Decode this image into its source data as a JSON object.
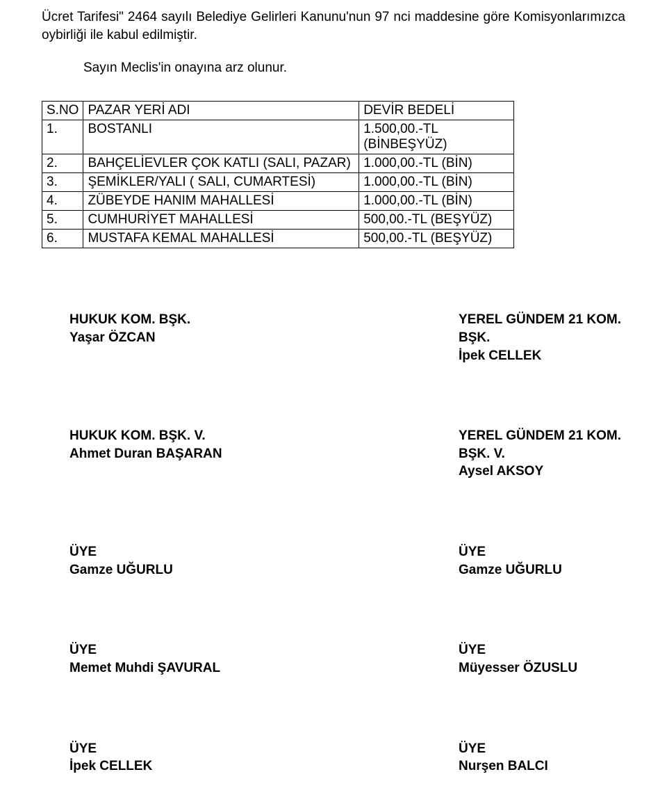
{
  "intro_text": "Ücret Tarifesi\" 2464 sayılı Belediye Gelirleri Kanunu'nun 97 nci maddesine göre Komisyonlarımızca oybirliği ile kabul edilmiştir.",
  "submit_text": "Sayın Meclis'in onayına arz olunur.",
  "table": {
    "header": {
      "idx": "S.NO",
      "name": "PAZAR YERİ ADI",
      "fee": "DEVİR BEDELİ"
    },
    "rows": [
      {
        "idx": "1.",
        "name": "BOSTANLI",
        "fee": "1.500,00.-TL (BİNBEŞYÜZ)"
      },
      {
        "idx": "2.",
        "name": "BAHÇELİEVLER ÇOK KATLI (SALI, PAZAR)",
        "fee": "1.000,00.-TL (BİN)"
      },
      {
        "idx": "3.",
        "name": "ŞEMİKLER/YALI ( SALI, CUMARTESİ)",
        "fee": "1.000,00.-TL (BİN)"
      },
      {
        "idx": "4.",
        "name": "ZÜBEYDE HANIM MAHALLESİ",
        "fee": "1.000,00.-TL (BİN)"
      },
      {
        "idx": "5.",
        "name": "CUMHURİYET MAHALLESİ",
        "fee": "500,00.-TL (BEŞYÜZ)"
      },
      {
        "idx": "6.",
        "name": "MUSTAFA KEMAL MAHALLESİ",
        "fee": "500,00.-TL (BEŞYÜZ)"
      }
    ]
  },
  "signatures": [
    {
      "left": "HUKUK KOM. BŞK.\nYaşar ÖZCAN",
      "right": "YEREL GÜNDEM 21 KOM. BŞK.\nİpek CELLEK"
    },
    {
      "left": "HUKUK KOM. BŞK. V.\nAhmet Duran BAŞARAN",
      "right": "YEREL GÜNDEM 21 KOM.\nBŞK. V.\nAysel AKSOY"
    },
    {
      "left": "ÜYE\nGamze UĞURLU",
      "right": "ÜYE\nGamze UĞURLU"
    },
    {
      "left": "ÜYE\nMemet Muhdi ŞAVURAL",
      "right": "ÜYE\nMüyesser ÖZUSLU"
    },
    {
      "left": "ÜYE\nİpek CELLEK",
      "right": "ÜYE\nNurşen BALCI"
    }
  ]
}
